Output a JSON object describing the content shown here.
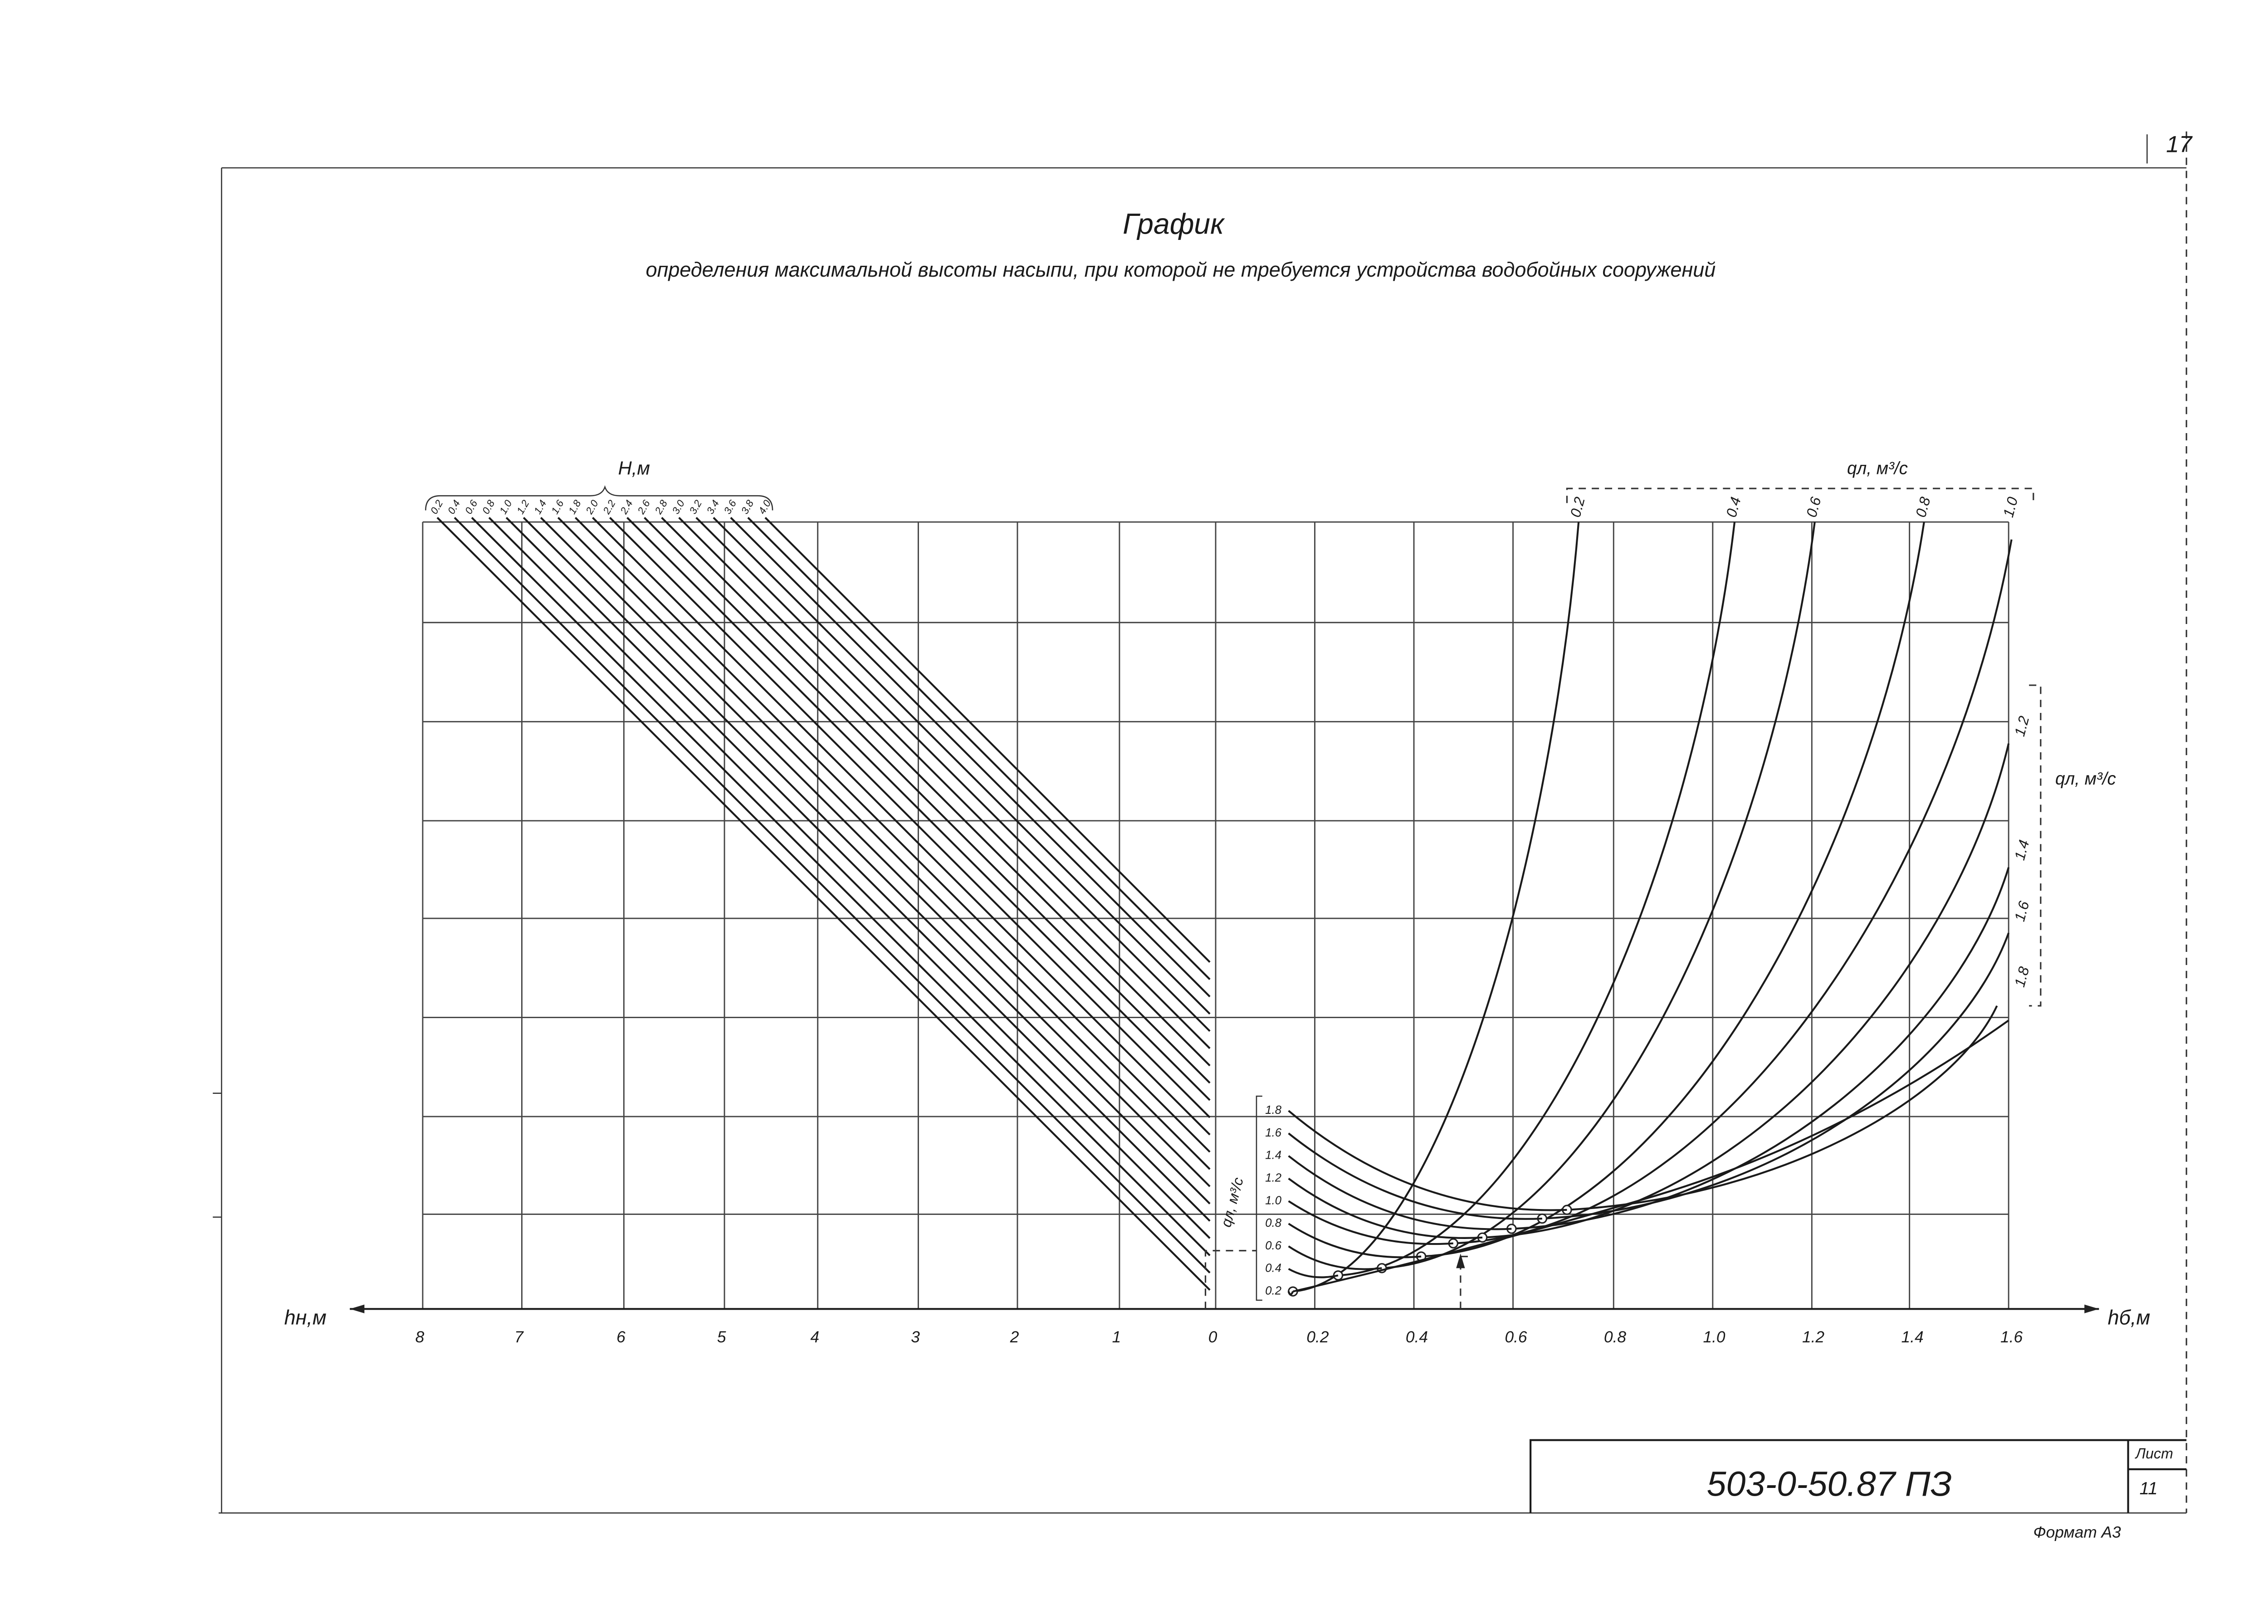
{
  "page_number": "17",
  "title": "График",
  "subtitle": "определения максимальной высоты насыпи, при которой не требуется устройства водобойных сооружений",
  "left_axis": {
    "label": "hн,м",
    "ticks": [
      "8",
      "7",
      "6",
      "5",
      "4",
      "3",
      "2",
      "1",
      "0"
    ]
  },
  "right_axis": {
    "label": "hб,м",
    "ticks": [
      "0.2",
      "0.4",
      "0.6",
      "0.8",
      "1.0",
      "1.2",
      "1.4",
      "1.6"
    ]
  },
  "h_scale": {
    "label": "H,м",
    "ticks": [
      "0.2",
      "0.4",
      "0.6",
      "0.8",
      "1.0",
      "1.2",
      "1.4",
      "1.6",
      "1.8",
      "2.0",
      "2.2",
      "2.4",
      "2.6",
      "2.8",
      "3.0",
      "3.2",
      "3.4",
      "3.6",
      "3.8",
      "4.0"
    ]
  },
  "q_top": {
    "label": "qл, м³/с",
    "ticks": [
      "0.2",
      "0.4",
      "0.6",
      "0.8",
      "1.0"
    ]
  },
  "q_side": {
    "label": "qл, м³/с",
    "ticks": [
      "1.2",
      "1.4",
      "1.6",
      "1.8"
    ]
  },
  "q_inner": {
    "label": "qл, м³/с",
    "ticks": [
      "1.8",
      "1.6",
      "1.4",
      "1.2",
      "1.0",
      "0.8",
      "0.6",
      "0.4",
      "0.2"
    ]
  },
  "stamp": {
    "code": "503-0-50.87 ПЗ",
    "sheet_label": "Лист",
    "sheet": "11",
    "format": "Формат А3"
  }
}
